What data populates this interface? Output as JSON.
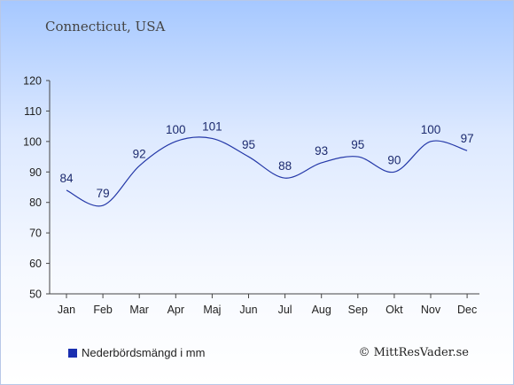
{
  "chart_data": {
    "type": "line",
    "title": "Connecticut, USA",
    "categories": [
      "Jan",
      "Feb",
      "Mar",
      "Apr",
      "Maj",
      "Jun",
      "Jul",
      "Aug",
      "Sep",
      "Okt",
      "Nov",
      "Dec"
    ],
    "series": [
      {
        "name": "Nederbördsmängd i mm",
        "values": [
          84,
          79,
          92,
          100,
          101,
          95,
          88,
          93,
          95,
          90,
          100,
          97
        ],
        "color": "#2438a8"
      }
    ],
    "ylim": [
      50,
      120
    ],
    "yticks": [
      50,
      60,
      70,
      80,
      90,
      100,
      110,
      120
    ],
    "data_labels": true,
    "grid": false,
    "legend_position": "bottom-left"
  },
  "legend": {
    "label": "Nederbördsmängd i mm",
    "color": "#1a2fb0"
  },
  "credit": "© MittResVader.se"
}
